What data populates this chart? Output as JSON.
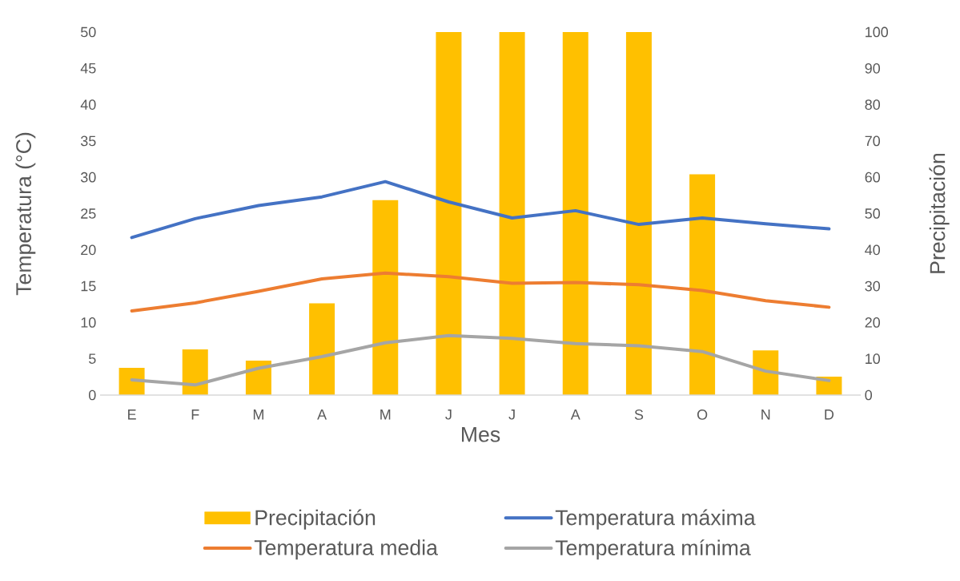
{
  "chart_data": {
    "type": "line",
    "categories": [
      "E",
      "F",
      "M",
      "A",
      "M",
      "J",
      "J",
      "A",
      "S",
      "O",
      "N",
      "D"
    ],
    "xlabel": "Mes",
    "ylabel": "Temperatura (°C)",
    "y2label": "Precipitación",
    "ylim": [
      0,
      50
    ],
    "yticks": [
      0,
      5,
      10,
      15,
      20,
      25,
      30,
      35,
      40,
      45,
      50
    ],
    "y2lim": [
      0,
      100
    ],
    "y2ticks": [
      0,
      10,
      20,
      30,
      40,
      50,
      60,
      70,
      80,
      90,
      100
    ],
    "legend": "bottom",
    "series": [
      {
        "name": "Precipitación",
        "type": "bar",
        "axis": "y2",
        "color": "#ffc000",
        "values": [
          7.5,
          12.6,
          9.5,
          25.3,
          53.7,
          100,
          100,
          100,
          100,
          60.8,
          12.3,
          5.1
        ]
      },
      {
        "name": "Temperatura máxima",
        "color": "#4472c4",
        "values": [
          21.7,
          24.3,
          26.1,
          27.3,
          29.4,
          26.6,
          24.4,
          25.4,
          23.5,
          24.4,
          23.6,
          22.9
        ]
      },
      {
        "name": "Temperatura media",
        "color": "#ed7d31",
        "values": [
          11.6,
          12.7,
          14.3,
          16.0,
          16.8,
          16.3,
          15.4,
          15.5,
          15.2,
          14.4,
          13.0,
          12.1
        ]
      },
      {
        "name": "Temperatura mínima",
        "color": "#a5a5a5",
        "values": [
          2.1,
          1.4,
          3.7,
          5.3,
          7.2,
          8.2,
          7.8,
          7.1,
          6.8,
          6.0,
          3.3,
          2.0
        ]
      }
    ]
  }
}
